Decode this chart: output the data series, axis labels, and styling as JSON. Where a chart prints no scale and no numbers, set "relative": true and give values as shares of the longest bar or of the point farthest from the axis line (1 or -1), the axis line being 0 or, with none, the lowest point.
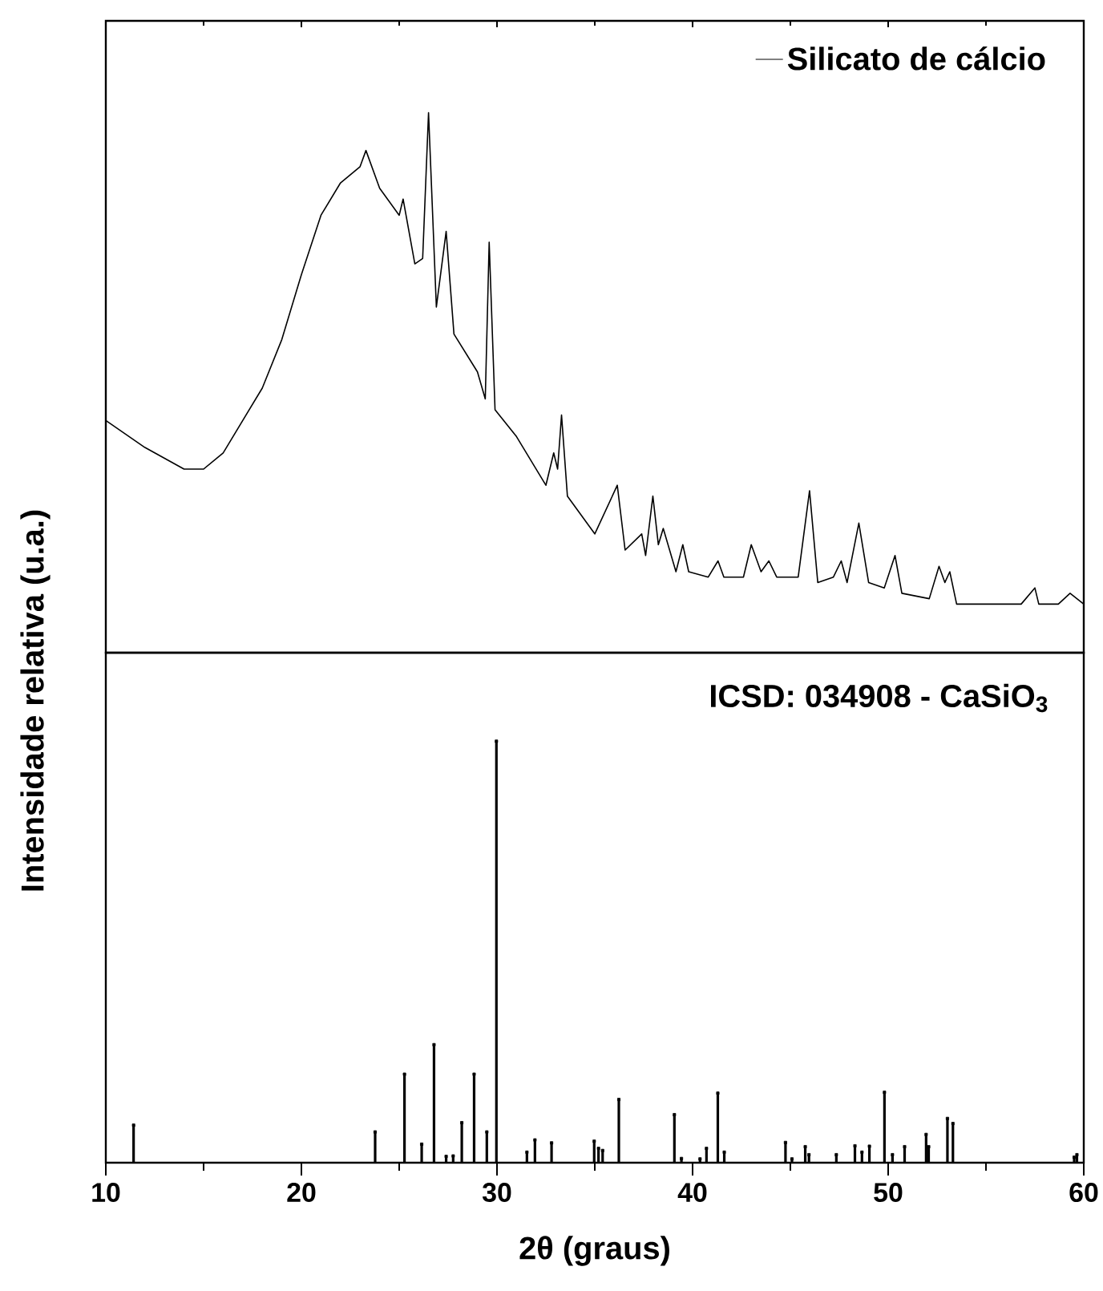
{
  "chart_data": [
    {
      "type": "line",
      "relative": true,
      "xlim": [
        10,
        60
      ],
      "xticks": [
        10,
        20,
        30,
        40,
        50,
        60
      ],
      "tick_labels": false,
      "ylabel": "Intensidade relativa (u.a.)",
      "legend": "top right",
      "series": [
        {
          "name": "Silicato de cálcio",
          "color": "#000000",
          "x": [
            10,
            12,
            14,
            15,
            16,
            18,
            19,
            20,
            21,
            22,
            23,
            23.3,
            24,
            25,
            25.2,
            25.8,
            26.2,
            26.5,
            26.9,
            27.4,
            27.8,
            29.0,
            29.4,
            29.6,
            29.9,
            31,
            32.5,
            32.9,
            33.1,
            33.3,
            33.6,
            35,
            36.15,
            36.55,
            37.4,
            37.6,
            37.97,
            38.25,
            38.5,
            39.15,
            39.5,
            39.8,
            40.8,
            41.3,
            41.6,
            42.6,
            43.0,
            43.5,
            43.9,
            44.3,
            45.4,
            45.98,
            46.4,
            47.2,
            47.6,
            47.9,
            48.5,
            49.0,
            49.8,
            50.35,
            50.7,
            52.1,
            52.6,
            52.9,
            53.15,
            53.5,
            55.7,
            56.8,
            57.5,
            57.7,
            58.7,
            59.3,
            60
          ],
          "values": [
            0.43,
            0.38,
            0.34,
            0.34,
            0.37,
            0.49,
            0.58,
            0.7,
            0.81,
            0.87,
            0.9,
            0.93,
            0.86,
            0.81,
            0.84,
            0.72,
            0.73,
            1.0,
            0.64,
            0.78,
            0.59,
            0.52,
            0.47,
            0.76,
            0.45,
            0.4,
            0.31,
            0.37,
            0.34,
            0.44,
            0.29,
            0.22,
            0.31,
            0.19,
            0.22,
            0.18,
            0.29,
            0.2,
            0.23,
            0.15,
            0.2,
            0.15,
            0.14,
            0.17,
            0.14,
            0.14,
            0.2,
            0.15,
            0.17,
            0.14,
            0.14,
            0.3,
            0.13,
            0.14,
            0.17,
            0.13,
            0.24,
            0.13,
            0.12,
            0.18,
            0.11,
            0.1,
            0.16,
            0.13,
            0.15,
            0.09,
            0.09,
            0.09,
            0.12,
            0.09,
            0.09,
            0.11,
            0.09
          ]
        }
      ]
    },
    {
      "type": "lollipop",
      "relative": true,
      "xlim": [
        10,
        60
      ],
      "xticks": [
        10,
        20,
        30,
        40,
        50,
        60
      ],
      "xlabel": "2θ (graus)",
      "annotations": [
        "ICSD: 034908 -  CaSiO$_{3}$"
      ],
      "color": "#000000",
      "x": [
        11.42,
        23.77,
        25.27,
        26.15,
        26.78,
        27.4,
        27.76,
        28.2,
        28.83,
        29.48,
        29.97,
        31.53,
        31.94,
        32.79,
        34.97,
        35.19,
        35.4,
        36.23,
        39.07,
        39.43,
        40.38,
        40.71,
        41.29,
        41.62,
        44.75,
        45.08,
        45.76,
        45.95,
        47.35,
        48.3,
        48.66,
        49.04,
        49.81,
        50.22,
        50.84,
        51.94,
        52.07,
        53.03,
        53.31,
        59.51,
        59.65
      ],
      "values": [
        0.089,
        0.073,
        0.21,
        0.044,
        0.28,
        0.015,
        0.016,
        0.095,
        0.21,
        0.073,
        1.0,
        0.025,
        0.054,
        0.047,
        0.051,
        0.034,
        0.029,
        0.15,
        0.114,
        0.01,
        0.009,
        0.034,
        0.165,
        0.025,
        0.048,
        0.009,
        0.038,
        0.019,
        0.019,
        0.04,
        0.025,
        0.039,
        0.167,
        0.019,
        0.038,
        0.067,
        0.038,
        0.105,
        0.093,
        0.013,
        0.019
      ]
    }
  ]
}
